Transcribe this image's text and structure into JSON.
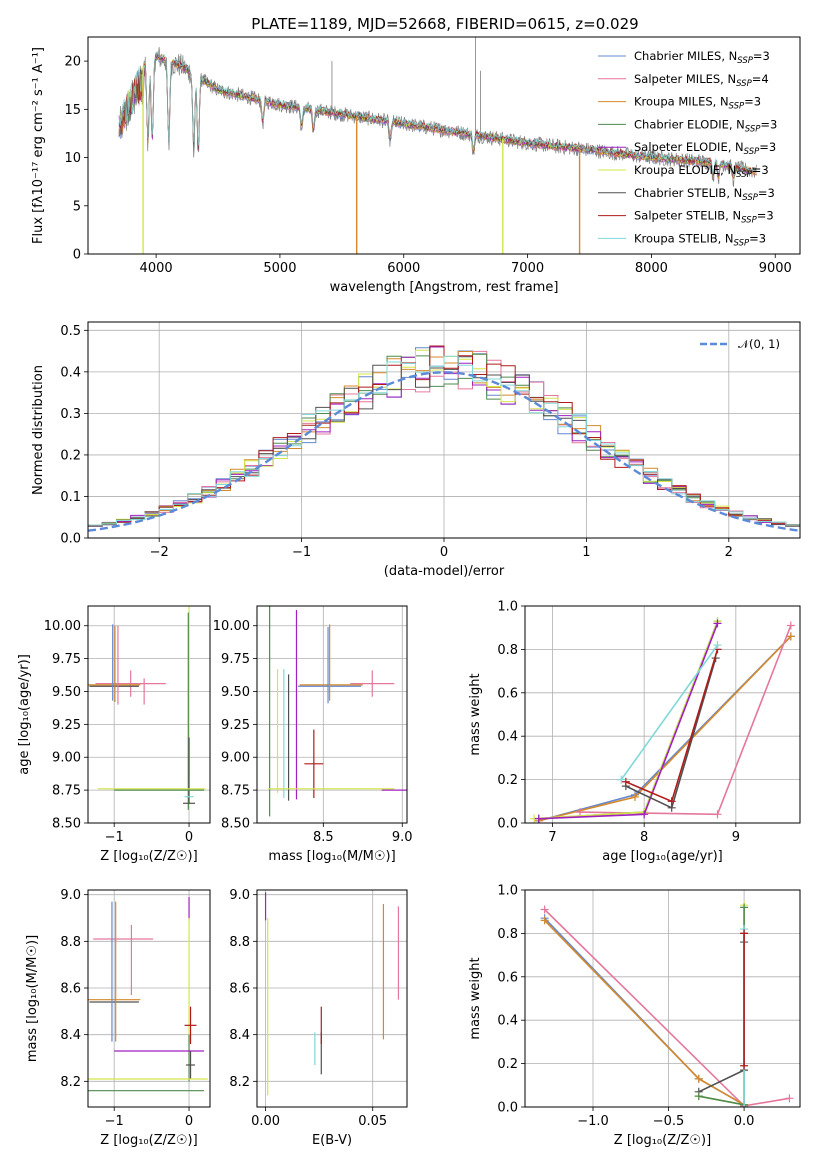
{
  "figure": {
    "title": "PLATE=1189, MJD=52668, FIBERID=0615, z=0.029"
  },
  "colors": {
    "Chabrier MILES": "#6688d0",
    "Salpeter MILES": "#e6779c",
    "Kroupa MILES": "#d48a2c",
    "Chabrier ELODIE": "#4f8a4f",
    "Salpeter ELODIE": "#a020c0",
    "Kroupa ELODIE": "#d4e64a",
    "Chabrier STELIB": "#505050",
    "Salpeter STELIB": "#b01c1c",
    "Kroupa STELIB": "#80d8d8",
    "normal": "#5b8ad8",
    "data": "#7f7f7f"
  },
  "chart_data": [
    {
      "id": "spectrum",
      "type": "line",
      "title": "PLATE=1189, MJD=52668, FIBERID=0615, z=0.029",
      "xlabel": "wavelength [Angstrom, rest frame]",
      "ylabel": "Flux [fλ10⁻¹⁷ erg cm⁻² s⁻¹ A⁻¹]",
      "xlim": [
        3450,
        9200
      ],
      "ylim": [
        0,
        22.5
      ],
      "xticks": [
        4000,
        5000,
        6000,
        7000,
        8000,
        9000
      ],
      "yticks": [
        0,
        5,
        10,
        15,
        20
      ],
      "grid": false,
      "legend_position": "top-right",
      "legend": [
        {
          "label": "Chabrier MILES, N_SSP=3",
          "series": "Chabrier MILES"
        },
        {
          "label": "Salpeter MILES, N_SSP=4",
          "series": "Salpeter MILES"
        },
        {
          "label": "Kroupa MILES, N_SSP=3",
          "series": "Kroupa MILES"
        },
        {
          "label": "Chabrier ELODIE, N_SSP=3",
          "series": "Chabrier ELODIE"
        },
        {
          "label": "Salpeter ELODIE, N_SSP=3",
          "series": "Salpeter ELODIE"
        },
        {
          "label": "Kroupa ELODIE, N_SSP=3",
          "series": "Kroupa ELODIE"
        },
        {
          "label": "Chabrier STELIB, N_SSP=3",
          "series": "Chabrier STELIB"
        },
        {
          "label": "Salpeter STELIB, N_SSP=3",
          "series": "Salpeter STELIB"
        },
        {
          "label": "Kroupa STELIB, N_SSP=3",
          "series": "Kroupa STELIB"
        }
      ],
      "continuum": {
        "x": [
          3700,
          3850,
          4000,
          4200,
          4500,
          5000,
          5500,
          6000,
          6500,
          7000,
          7500,
          8000,
          8500,
          8850
        ],
        "y": [
          14.5,
          19,
          20.5,
          19.5,
          17,
          15.5,
          14.5,
          13.5,
          12.5,
          11.5,
          10.8,
          10,
          9.5,
          8.5
        ]
      },
      "drops": [
        {
          "series": "Kroupa ELODIE",
          "x": 3895
        },
        {
          "series": "Kroupa MILES",
          "x": 5620
        },
        {
          "series": "Kroupa ELODIE",
          "x": 6800
        },
        {
          "series": "Kroupa MILES",
          "x": 7420
        }
      ],
      "data_spikes": [
        {
          "x": 5420,
          "y": 20
        },
        {
          "x": 6580,
          "y": 22.5
        },
        {
          "x": 6620,
          "y": 19
        }
      ]
    },
    {
      "id": "residuals",
      "type": "line",
      "xlabel": "(data-model)/error",
      "ylabel": "Normed distribution",
      "xlim": [
        -2.5,
        2.5
      ],
      "ylim": [
        0,
        0.52
      ],
      "xticks": [
        -2,
        -1,
        0,
        1,
        2
      ],
      "yticks": [
        0.0,
        0.1,
        0.2,
        0.3,
        0.4,
        0.5
      ],
      "grid": true,
      "legend_position": "top-right",
      "legend_label": "𝒩(0, 1)",
      "bin_width": 0.1
    },
    {
      "id": "age-z",
      "type": "scatter",
      "xlabel": "Z [log₁₀(Z/Z☉)]",
      "ylabel": "age  [log₁₀(age/yr)]",
      "xlim": [
        -1.35,
        0.28
      ],
      "ylim": [
        8.5,
        10.15
      ],
      "xticks": [
        -1,
        0
      ],
      "yticks": [
        8.5,
        8.75,
        9.0,
        9.25,
        9.5,
        9.75,
        10.0
      ],
      "grid": true,
      "errorbars": [
        {
          "series": "Salpeter MILES",
          "x": -0.78,
          "y": 9.56,
          "xerr": 0.47,
          "yerr": 0.1
        },
        {
          "series": "Chabrier STELIB",
          "x": -1.0,
          "y": 9.54,
          "xerr": 0.33,
          "yerr": 0.0
        },
        {
          "series": "Kroupa MILES",
          "x": -1.0,
          "y": 9.55,
          "xerr": 0.35,
          "yerr": 0.0
        },
        {
          "series": "Chabrier MILES",
          "x": -1.02,
          "y": 9.72,
          "xerr": 0.0,
          "yerr": 0.29
        },
        {
          "series": "Kroupa MILES",
          "x": -0.99,
          "y": 9.71,
          "xerr": 0.0,
          "yerr": 0.29
        },
        {
          "series": "Salpeter MILES",
          "x": -0.95,
          "y": 9.7,
          "xerr": 0.0,
          "yerr": 0.3
        },
        {
          "series": "Salpeter MILES",
          "x": -0.6,
          "y": 9.5,
          "xerr": 0.0,
          "yerr": 0.1
        },
        {
          "series": "Kroupa ELODIE",
          "x": 0.0,
          "y": 9.5,
          "xerr": 0.0,
          "yerr": 0.65
        },
        {
          "series": "Chabrier ELODIE",
          "x": -0.01,
          "y": 9.35,
          "xerr": 0.0,
          "yerr": 0.75
        },
        {
          "series": "Chabrier STELIB",
          "x": 0.0,
          "y": 8.9,
          "xerr": 0.0,
          "yerr": 0.25
        },
        {
          "series": "Kroupa ELODIE",
          "x": -0.5,
          "y": 8.76,
          "xerr": 0.72,
          "yerr": 0.0
        },
        {
          "series": "Chabrier ELODIE",
          "x": -0.4,
          "y": 8.75,
          "xerr": 0.6,
          "yerr": 0.0
        },
        {
          "series": "Chabrier STELIB",
          "x": 0.0,
          "y": 8.65,
          "xerr": 0.08,
          "yerr": 0.0
        },
        {
          "series": "Kroupa STELIB",
          "x": 0.0,
          "y": 8.7,
          "xerr": 0.06,
          "yerr": 0.0
        }
      ]
    },
    {
      "id": "age-mass",
      "type": "scatter",
      "xlabel": "mass [log₁₀(M/M☉)]",
      "ylabel": "",
      "xlim": [
        8.08,
        9.03
      ],
      "ylim": [
        8.5,
        10.15
      ],
      "xticks": [
        8.5,
        9.0
      ],
      "yticks": [
        8.5,
        8.75,
        9.0,
        9.25,
        9.5,
        9.75,
        10.0
      ],
      "grid": true,
      "errorbars": [
        {
          "series": "Chabrier MILES",
          "x": 8.54,
          "y": 9.54,
          "xerr": 0.2,
          "yerr": 0.0
        },
        {
          "series": "Kroupa MILES",
          "x": 8.55,
          "y": 9.55,
          "xerr": 0.2,
          "yerr": 0.0
        },
        {
          "series": "Salpeter MILES",
          "x": 8.81,
          "y": 9.56,
          "xerr": 0.14,
          "yerr": 0.1
        },
        {
          "series": "Kroupa MILES",
          "x": 8.54,
          "y": 9.72,
          "xerr": 0.0,
          "yerr": 0.29
        },
        {
          "series": "Chabrier MILES",
          "x": 8.53,
          "y": 9.7,
          "xerr": 0.0,
          "yerr": 0.29
        },
        {
          "series": "Chabrier ELODIE",
          "x": 8.16,
          "y": 9.35,
          "xerr": 0.0,
          "yerr": 0.8
        },
        {
          "series": "Kroupa ELODIE",
          "x": 8.21,
          "y": 9.2,
          "xerr": 0.0,
          "yerr": 0.47
        },
        {
          "series": "Kroupa STELIB",
          "x": 8.25,
          "y": 9.18,
          "xerr": 0.0,
          "yerr": 0.49
        },
        {
          "series": "Salpeter ELODIE",
          "x": 8.33,
          "y": 9.4,
          "xerr": 0.0,
          "yerr": 0.72
        },
        {
          "series": "Chabrier STELIB",
          "x": 8.28,
          "y": 9.15,
          "xerr": 0.0,
          "yerr": 0.48
        },
        {
          "series": "Salpeter STELIB",
          "x": 8.44,
          "y": 8.95,
          "xerr": 0.06,
          "yerr": 0.26
        },
        {
          "series": "Kroupa ELODIE",
          "x": 8.55,
          "y": 8.76,
          "xerr": 0.4,
          "yerr": 0.0
        },
        {
          "series": "Salpeter ELODIE",
          "x": 8.95,
          "y": 8.75,
          "xerr": 0.08,
          "yerr": 0.0
        }
      ]
    },
    {
      "id": "weight-age",
      "type": "line",
      "xlabel": "age  [log₁₀(age/yr)]",
      "ylabel": "mass weight",
      "xlim": [
        6.7,
        9.7
      ],
      "ylim": [
        0,
        1.0
      ],
      "xticks": [
        7,
        8,
        9
      ],
      "yticks": [
        0.0,
        0.2,
        0.4,
        0.6,
        0.8,
        1.0
      ],
      "grid": true,
      "series": [
        {
          "name": "Chabrier MILES",
          "x": [
            6.85,
            7.9,
            9.6
          ],
          "y": [
            0.01,
            0.13,
            0.86
          ]
        },
        {
          "name": "Kroupa MILES",
          "x": [
            6.85,
            7.9,
            9.6
          ],
          "y": [
            0.01,
            0.12,
            0.86
          ]
        },
        {
          "name": "Salpeter MILES",
          "x": [
            7.3,
            8.8,
            9.6
          ],
          "y": [
            0.05,
            0.04,
            0.91
          ]
        },
        {
          "name": "Chabrier ELODIE",
          "x": [
            6.85,
            8.0,
            8.8
          ],
          "y": [
            0.02,
            0.05,
            0.93
          ]
        },
        {
          "name": "Kroupa ELODIE",
          "x": [
            6.8,
            8.0,
            8.8
          ],
          "y": [
            0.02,
            0.05,
            0.93
          ]
        },
        {
          "name": "Salpeter ELODIE",
          "x": [
            6.85,
            8.0,
            8.8
          ],
          "y": [
            0.02,
            0.04,
            0.92
          ]
        },
        {
          "name": "Chabrier STELIB",
          "x": [
            7.8,
            8.3,
            8.78
          ],
          "y": [
            0.17,
            0.07,
            0.76
          ]
        },
        {
          "name": "Salpeter STELIB",
          "x": [
            7.8,
            8.3,
            8.8
          ],
          "y": [
            0.19,
            0.1,
            0.8
          ]
        },
        {
          "name": "Kroupa STELIB",
          "x": [
            7.75,
            8.8
          ],
          "y": [
            0.2,
            0.82
          ]
        }
      ]
    },
    {
      "id": "mass-z",
      "type": "scatter",
      "xlabel": "Z [log₁₀(Z/Z☉)]",
      "ylabel": "mass [log₁₀(M/M☉)]",
      "xlim": [
        -1.35,
        0.28
      ],
      "ylim": [
        8.09,
        9.02
      ],
      "xticks": [
        -1,
        0
      ],
      "yticks": [
        8.2,
        8.4,
        8.6,
        8.8,
        9.0
      ],
      "grid": true,
      "errorbars": [
        {
          "series": "Salpeter MILES",
          "x": -0.88,
          "y": 8.81,
          "xerr": 0.4,
          "yerr": 0.0
        },
        {
          "series": "Salpeter MILES",
          "x": -0.77,
          "y": 8.72,
          "xerr": 0.0,
          "yerr": 0.15
        },
        {
          "series": "Kroupa MILES",
          "x": -1.0,
          "y": 8.55,
          "xerr": 0.35,
          "yerr": 0.0
        },
        {
          "series": "Chabrier STELIB",
          "x": -1.0,
          "y": 8.54,
          "xerr": 0.33,
          "yerr": 0.0
        },
        {
          "series": "Chabrier MILES",
          "x": -1.03,
          "y": 8.67,
          "xerr": 0.0,
          "yerr": 0.3
        },
        {
          "series": "Kroupa MILES",
          "x": -0.98,
          "y": 8.67,
          "xerr": 0.0,
          "yerr": 0.3
        },
        {
          "series": "Salpeter ELODIE",
          "x": 0.0,
          "y": 8.94,
          "xerr": 0.0,
          "yerr": 0.05
        },
        {
          "series": "Kroupa ELODIE",
          "x": 0.0,
          "y": 8.6,
          "xerr": 0.0,
          "yerr": 0.3
        },
        {
          "series": "Salpeter STELIB",
          "x": 0.02,
          "y": 8.44,
          "xerr": 0.08,
          "yerr": 0.08
        },
        {
          "series": "Chabrier ELODIE",
          "x": 0.0,
          "y": 8.3,
          "xerr": 0.0,
          "yerr": 0.1
        },
        {
          "series": "Chabrier STELIB",
          "x": 0.02,
          "y": 8.27,
          "xerr": 0.06,
          "yerr": 0.06
        },
        {
          "series": "Salpeter ELODIE",
          "x": -0.4,
          "y": 8.33,
          "xerr": 0.6,
          "yerr": 0.0
        },
        {
          "series": "Kroupa ELODIE",
          "x": -0.55,
          "y": 8.21,
          "xerr": 0.8,
          "yerr": 0.0
        },
        {
          "series": "Chabrier ELODIE",
          "x": -0.6,
          "y": 8.16,
          "xerr": 0.8,
          "yerr": 0.0
        }
      ]
    },
    {
      "id": "mass-ebv",
      "type": "scatter",
      "xlabel": "E(B-V)",
      "ylabel": "",
      "xlim": [
        -0.004,
        0.066
      ],
      "ylim": [
        8.09,
        9.02
      ],
      "xticks": [
        0.0,
        0.05
      ],
      "yticks": [
        8.2,
        8.4,
        8.6,
        8.8,
        9.0
      ],
      "xtick_labels": [
        "0.00",
        "0.05"
      ],
      "grid": true,
      "errorbars": [
        {
          "series": "Salpeter ELODIE",
          "x": 0.0,
          "y": 8.95,
          "xerr": 0.0,
          "yerr": 0.06
        },
        {
          "series": "Kroupa ELODIE",
          "x": 0.001,
          "y": 8.52,
          "xerr": 0.0,
          "yerr": 0.38
        },
        {
          "series": "Kroupa STELIB",
          "x": 0.023,
          "y": 8.34,
          "xerr": 0.0,
          "yerr": 0.07
        },
        {
          "series": "Chabrier STELIB",
          "x": 0.026,
          "y": 8.32,
          "xerr": 0.0,
          "yerr": 0.09
        },
        {
          "series": "Salpeter STELIB",
          "x": 0.026,
          "y": 8.44,
          "xerr": 0.0,
          "yerr": 0.08
        },
        {
          "series": "Kroupa MILES",
          "x": 0.055,
          "y": 8.67,
          "xerr": 0.0,
          "yerr": 0.29
        },
        {
          "series": "Salpeter MILES",
          "x": 0.062,
          "y": 8.75,
          "xerr": 0.0,
          "yerr": 0.2
        }
      ]
    },
    {
      "id": "weight-z",
      "type": "line",
      "xlabel": "Z [log₁₀(Z/Z☉)]",
      "ylabel": "mass weight",
      "xlim": [
        -1.45,
        0.37
      ],
      "ylim": [
        0,
        1.0
      ],
      "xticks": [
        -1.0,
        -0.5,
        0.0
      ],
      "xtick_labels": [
        "−1.0",
        "−0.5",
        "0.0"
      ],
      "yticks": [
        0.0,
        0.2,
        0.4,
        0.6,
        0.8,
        1.0
      ],
      "grid": true,
      "series": [
        {
          "name": "Salpeter MILES",
          "x": [
            -1.32,
            0.0,
            0.3
          ],
          "y": [
            0.91,
            0.005,
            0.04
          ]
        },
        {
          "name": "Chabrier MILES",
          "x": [
            -1.32,
            -0.3,
            0.0
          ],
          "y": [
            0.87,
            0.13,
            0.01
          ]
        },
        {
          "name": "Kroupa MILES",
          "x": [
            -1.32,
            -0.3,
            0.0
          ],
          "y": [
            0.86,
            0.13,
            0.01
          ]
        },
        {
          "name": "Chabrier STELIB",
          "x": [
            -0.3,
            0.0,
            0.0,
            0.0
          ],
          "y": [
            0.07,
            0.17,
            0.76,
            0.8
          ]
        },
        {
          "name": "Kroupa ELODIE",
          "x": [
            -0.3,
            0.0,
            0.0
          ],
          "y": [
            0.05,
            0.01,
            0.93
          ]
        },
        {
          "name": "Chabrier ELODIE",
          "x": [
            -0.3,
            0.0,
            0.0
          ],
          "y": [
            0.05,
            0.01,
            0.92
          ]
        },
        {
          "name": "Kroupa STELIB",
          "x": [
            0.0,
            0.0
          ],
          "y": [
            0.0,
            0.82
          ]
        },
        {
          "name": "Salpeter STELIB",
          "x": [
            0.0,
            0.0
          ],
          "y": [
            0.19,
            0.8
          ]
        }
      ]
    }
  ]
}
